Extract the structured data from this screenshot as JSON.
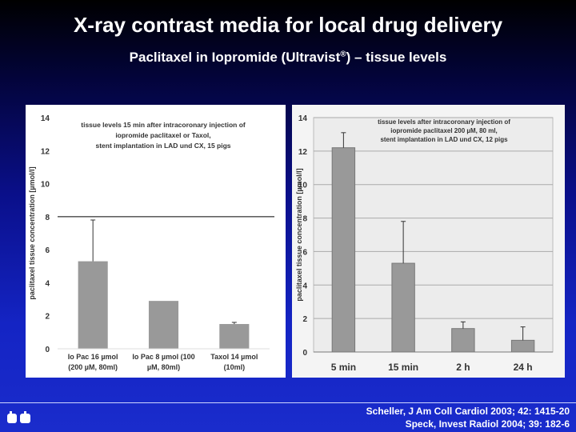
{
  "header": {
    "title": "X-ray contrast media for local drug delivery",
    "subtitle_main": "Paclitaxel in Iopromide (Ultravist",
    "subtitle_reg": "®",
    "subtitle_tail": ") – tissue levels"
  },
  "chart_data": [
    {
      "type": "bar",
      "title_lines": [
        "tissue levels 15 min after intracoronary injection of",
        "iopromide paclitaxel or Taxol,",
        "stent implantation in LAD und CX, 15 pigs"
      ],
      "ylabel": "paclitaxel tissue concentration [µmol/l]",
      "ylim": [
        0,
        14
      ],
      "yticks": [
        0,
        2,
        4,
        6,
        8,
        10,
        12,
        14
      ],
      "categories": [
        [
          "Io Pac 16 µmol",
          "(200 µM, 80ml)"
        ],
        [
          "Io Pac 8 µmol (100",
          "µM, 80ml)"
        ],
        [
          "Taxol 14 µmol",
          "(10ml)"
        ]
      ],
      "values": [
        5.3,
        2.9,
        1.5
      ],
      "errors": [
        2.5,
        null,
        0.1
      ],
      "reference_line": 8,
      "bar_color": "#999999",
      "grid": false
    },
    {
      "type": "bar",
      "title_lines": [
        "tissue levels after intracoronary injection of",
        "iopromide paclitaxel 200 µM, 80 ml,",
        "stent implantation in LAD und CX, 12 pigs"
      ],
      "ylabel": "paclitaxel tissue concentration [µmol/l]",
      "ylim": [
        0,
        14
      ],
      "yticks": [
        0,
        2,
        4,
        6,
        8,
        10,
        12,
        14
      ],
      "categories": [
        [
          "5 min"
        ],
        [
          "15 min"
        ],
        [
          "2 h"
        ],
        [
          "24 h"
        ]
      ],
      "values": [
        12.2,
        5.3,
        1.4,
        0.7
      ],
      "errors": [
        0.9,
        2.5,
        0.4,
        0.8
      ],
      "bar_color": "#999999",
      "grid": true
    }
  ],
  "footer": {
    "citation_lines": [
      "Scheller, J Am Coll Cardiol 2003; 42: 1415-20",
      "Speck, Invest Radiol 2004; 39: 182-6"
    ]
  }
}
